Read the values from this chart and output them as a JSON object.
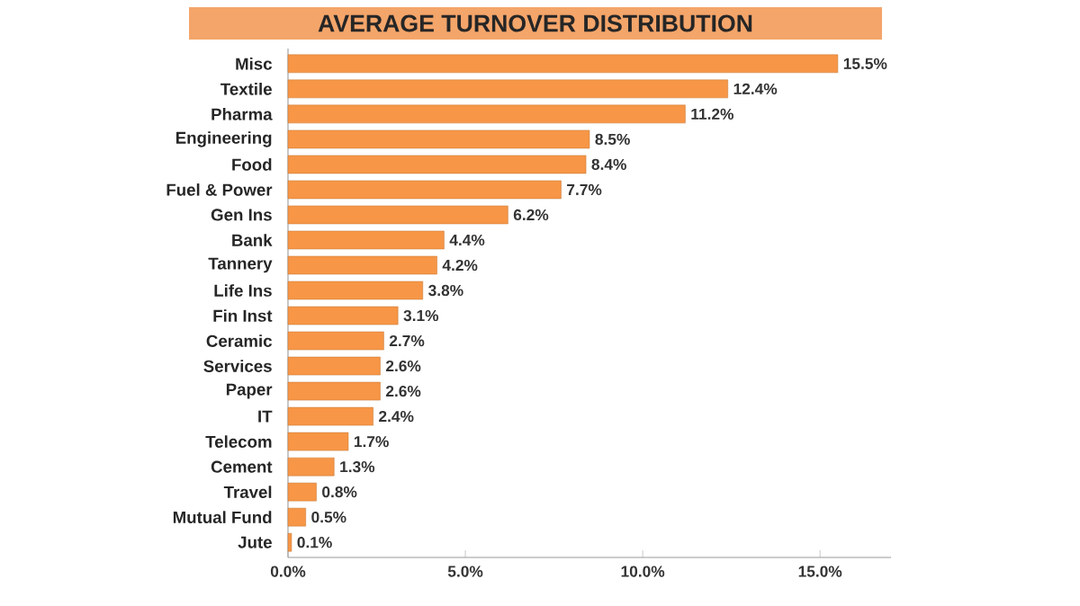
{
  "chart_data": {
    "type": "bar",
    "orientation": "horizontal",
    "title": "AVERAGE TURNOVER DISTRIBUTION",
    "categories": [
      "Misc",
      "Textile",
      "Pharma",
      "Engineering",
      "Food",
      "Fuel & Power",
      "Gen Ins",
      "Bank",
      "Tannery",
      "Life Ins",
      "Fin Inst",
      "Ceramic",
      "Services",
      "Paper",
      "IT",
      "Telecom",
      "Cement",
      "Travel",
      "Mutual Fund",
      "Jute"
    ],
    "values": [
      15.5,
      12.4,
      11.2,
      8.5,
      8.4,
      7.7,
      6.2,
      4.4,
      4.2,
      3.8,
      3.1,
      2.7,
      2.6,
      2.6,
      2.4,
      1.7,
      1.3,
      0.8,
      0.5,
      0.1
    ],
    "value_labels": [
      "15.5%",
      "12.4%",
      "11.2%",
      "8.5%",
      "8.4%",
      "7.7%",
      "6.2%",
      "4.4%",
      "4.2%",
      "3.8%",
      "3.1%",
      "2.7%",
      "2.6%",
      "2.6%",
      "2.4%",
      "1.7%",
      "1.3%",
      "0.8%",
      "0.5%",
      "0.1%"
    ],
    "color": "#f79646",
    "xlim": [
      0,
      17
    ],
    "xticks": [
      {
        "value": 0,
        "label": "0.0%"
      },
      {
        "value": 5,
        "label": "5.0%"
      },
      {
        "value": 10,
        "label": "10.0%"
      },
      {
        "value": 15,
        "label": "15.0%"
      }
    ]
  }
}
